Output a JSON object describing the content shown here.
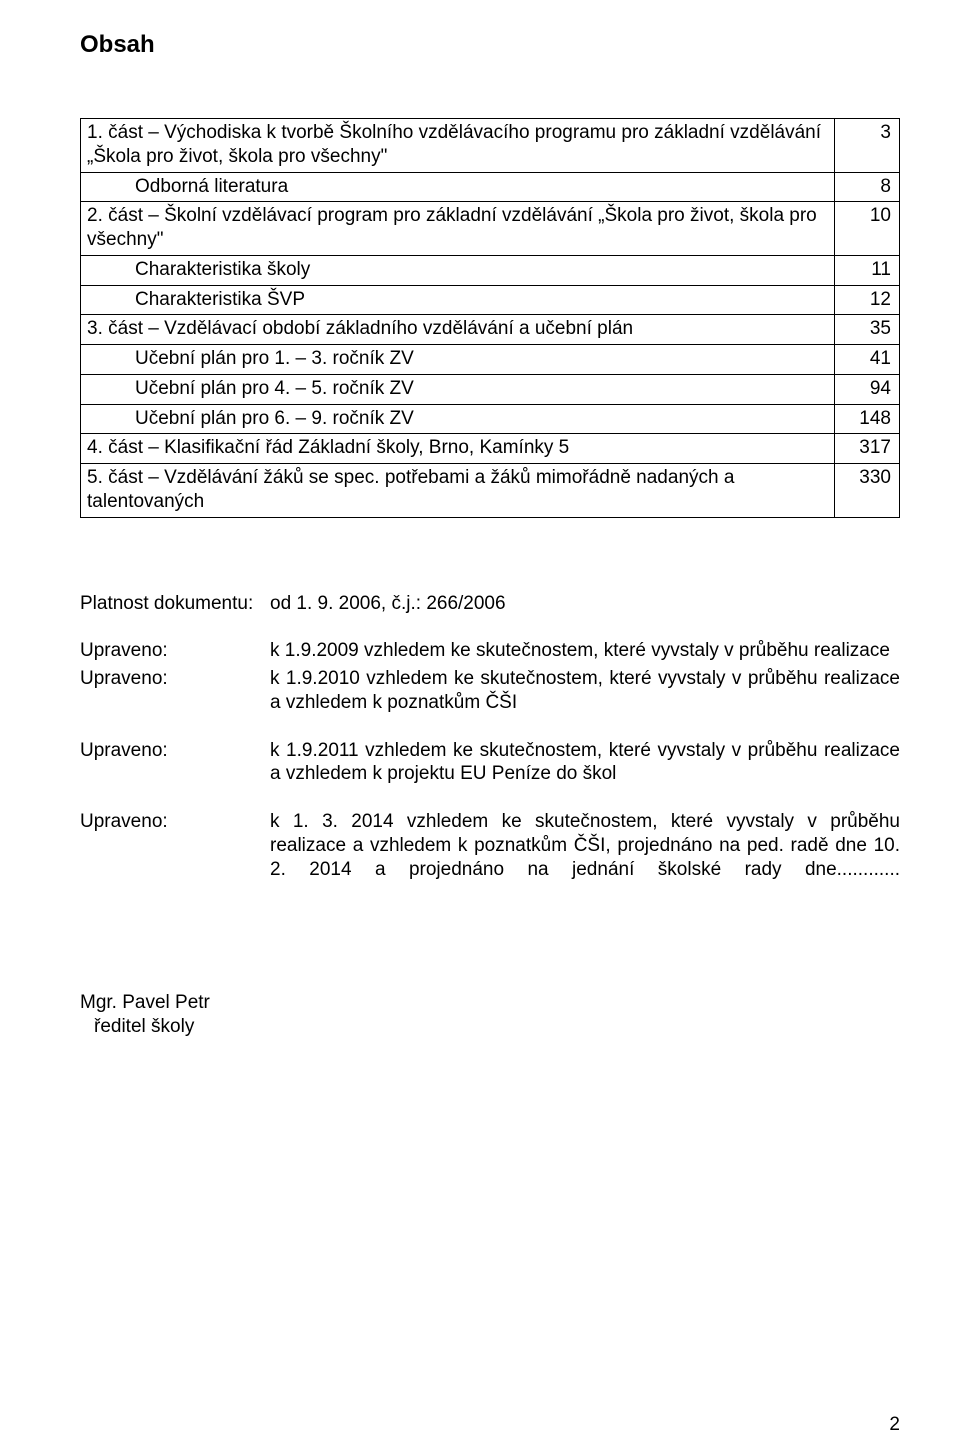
{
  "heading": "Obsah",
  "toc": [
    {
      "text": "1. část – Východiska k tvorbě Školního vzdělávacího programu pro základní vzdělávání „Škola pro život, škola pro všechny\"",
      "page": "3",
      "indent": false
    },
    {
      "text": "Odborná literatura",
      "page": "8",
      "indent": true
    },
    {
      "text": "2. část – Školní vzdělávací program pro základní vzdělávání „Škola pro život, škola pro všechny\"",
      "page": "10",
      "indent": false
    },
    {
      "text": "Charakteristika školy",
      "page": "11",
      "indent": true
    },
    {
      "text": "Charakteristika ŠVP",
      "page": "12",
      "indent": true
    },
    {
      "text": "3. část – Vzdělávací období základního vzdělávání a učební plán",
      "page": "35",
      "indent": false
    },
    {
      "text": "Učební plán pro 1. – 3. ročník ZV",
      "page": "41",
      "indent": true
    },
    {
      "text": "Učební plán pro 4. – 5. ročník ZV",
      "page": "94",
      "indent": true
    },
    {
      "text": "Učební plán pro 6. – 9. ročník ZV",
      "page": "148",
      "indent": true
    },
    {
      "text": "4. část – Klasifikační řád Základní školy, Brno, Kamínky 5",
      "page": "317",
      "indent": false
    },
    {
      "text": "5. část – Vzdělávání žáků se spec. potřebami a žáků mimořádně nadaných a talentovaných",
      "page": "330",
      "indent": false
    }
  ],
  "items": [
    {
      "label": "Platnost dokumentu:",
      "value": "od 1. 9. 2006, č.j.: 266/2006",
      "gap": false
    },
    {
      "label": "Upraveno:",
      "value": "k 1.9.2009 vzhledem ke skutečnostem, které vyvstaly v průběhu realizace",
      "gap": true
    },
    {
      "label": "Upraveno:",
      "value": "k 1.9.2010 vzhledem ke skutečnostem, které vyvstaly v průběhu realizace a vzhledem k poznatkům ČŠI",
      "gap": false
    },
    {
      "label": "Upraveno:",
      "value": "k 1.9.2011 vzhledem ke skutečnostem, které vyvstaly v průběhu realizace a vzhledem k projektu EU Peníze do škol",
      "gap": true
    },
    {
      "label": "Upraveno:",
      "value": "k 1. 3. 2014 vzhledem ke skutečnostem, které vyvstaly v průběhu realizace a vzhledem k poznatkům ČŠI, projednáno na ped. radě dne 10. 2. 2014 a projednáno na jednání školské rady dne............",
      "gap": true,
      "justify": true
    }
  ],
  "signature_name": "Mgr. Pavel Petr",
  "signature_title": "ředitel školy",
  "page_number": "2"
}
